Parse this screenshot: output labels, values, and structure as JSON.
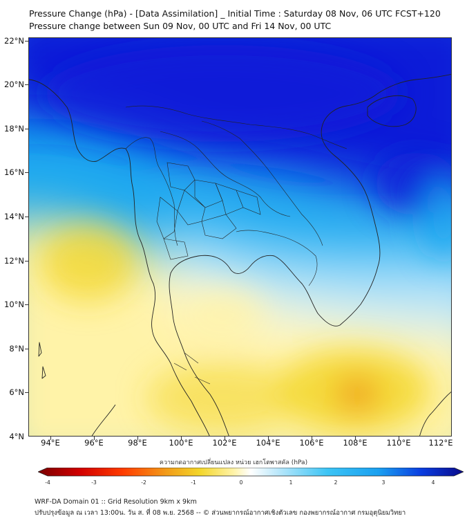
{
  "header": {
    "title_line1": "Pressure Change (hPa) - [Data Assimilation] _ Initial Time : Saturday 08 Nov, 06 UTC FCST+120",
    "title_line2": "Pressure change between Sun 09 Nov, 00 UTC and Fri 14 Nov, 00 UTC"
  },
  "map": {
    "lat_labels": [
      "22°N",
      "20°N",
      "18°N",
      "16°N",
      "14°N",
      "12°N",
      "10°N",
      "8°N",
      "6°N",
      "4°N"
    ],
    "lon_labels": [
      "94°E",
      "96°E",
      "98°E",
      "100°E",
      "102°E",
      "104°E",
      "106°E",
      "108°E",
      "110°E",
      "112°E"
    ],
    "colors": {
      "strong_fall": "#0a1fd8",
      "fall": "#1aa8f0",
      "light_fall": "#bfe9fb",
      "neutral": "#ffffff",
      "light_rise": "#fff3a8",
      "rise": "#f3d62a",
      "strong_rise": "#ef9a18",
      "boundary": "#222222"
    }
  },
  "colorbar": {
    "title": "ความกดอากาศเปลี่ยนแปลง หน่วย เฮกโตพาสคัล (hPa)",
    "ticks": [
      "-4",
      "-3",
      "-2",
      "-1",
      "0",
      "1",
      "2",
      "3",
      "4"
    ]
  },
  "footer": {
    "line1": "WRF-DA Domain 01 :: Grid Resolution 9km x 9km",
    "line2": "ปรับปรุงข้อมูล ณ เวลา 13:00น. วัน ส. ที่ 08 พ.ย. 2568 -- © ส่วนพยากรณ์อากาศเชิงตัวเลข กองพยากรณ์อากาศ กรมอุตุนิยมวิทยา"
  }
}
